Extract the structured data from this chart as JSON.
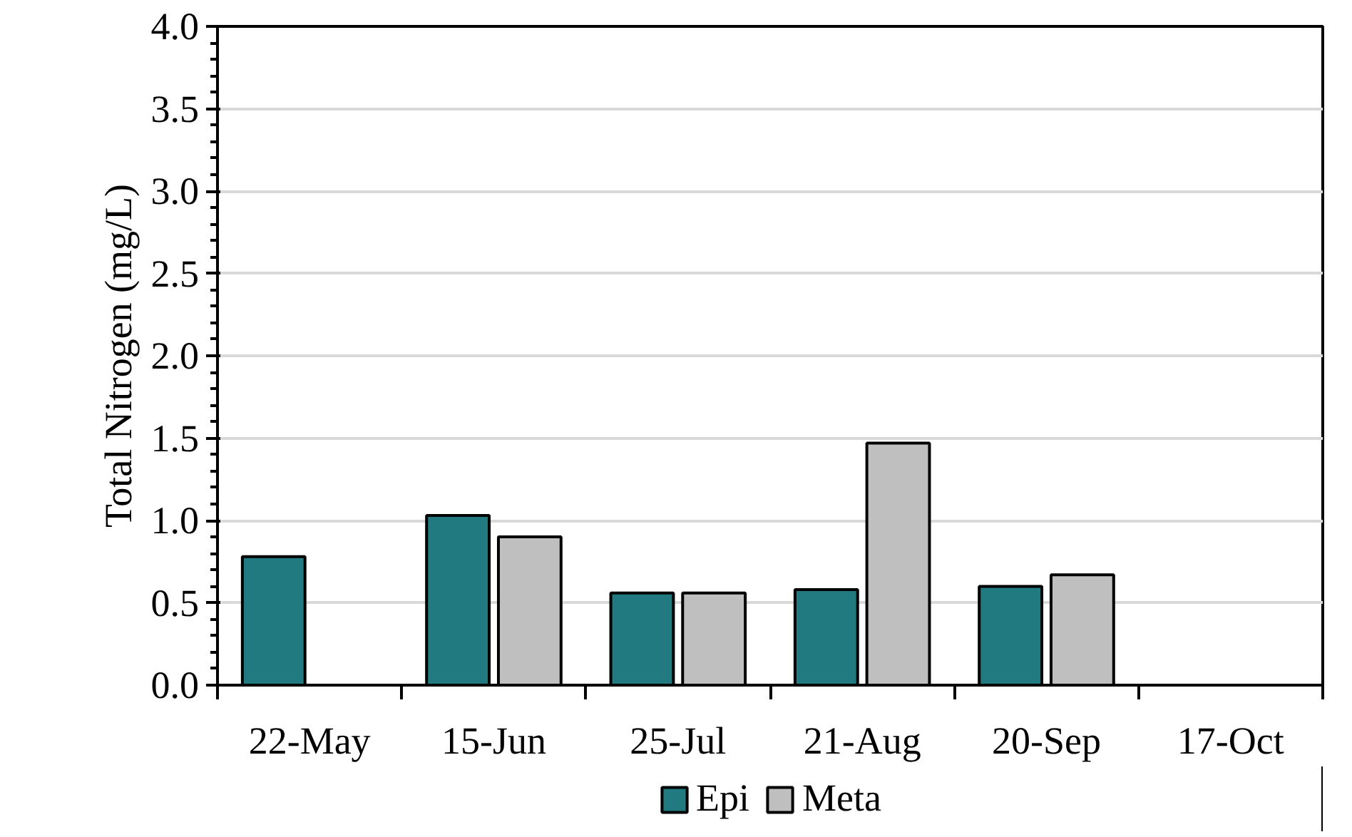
{
  "chart_data": {
    "type": "bar",
    "ylabel": "Total Nitrogen (mg/L)",
    "categories": [
      "22-May",
      "15-Jun",
      "25-Jul",
      "21-Aug",
      "20-Sep",
      "17-Oct"
    ],
    "series": [
      {
        "name": "Epi",
        "color": "#217a80",
        "values": [
          0.78,
          1.03,
          0.56,
          0.58,
          0.6,
          null
        ]
      },
      {
        "name": "Meta",
        "color": "#bfbfbf",
        "values": [
          null,
          0.9,
          0.56,
          1.47,
          0.67,
          null
        ]
      }
    ],
    "ylim": [
      0,
      4
    ],
    "yticks": [
      {
        "value": 0,
        "label": "0.0"
      },
      {
        "value": 0.5,
        "label": "0.5"
      },
      {
        "value": 1,
        "label": "1.0"
      },
      {
        "value": 1.5,
        "label": "1.5"
      },
      {
        "value": 2,
        "label": "2.0"
      },
      {
        "value": 2.5,
        "label": "2.5"
      },
      {
        "value": 3,
        "label": "3.0"
      },
      {
        "value": 3.5,
        "label": "3.5"
      },
      {
        "value": 4,
        "label": "4.0"
      }
    ],
    "grid": "y",
    "legend": "bottom"
  }
}
